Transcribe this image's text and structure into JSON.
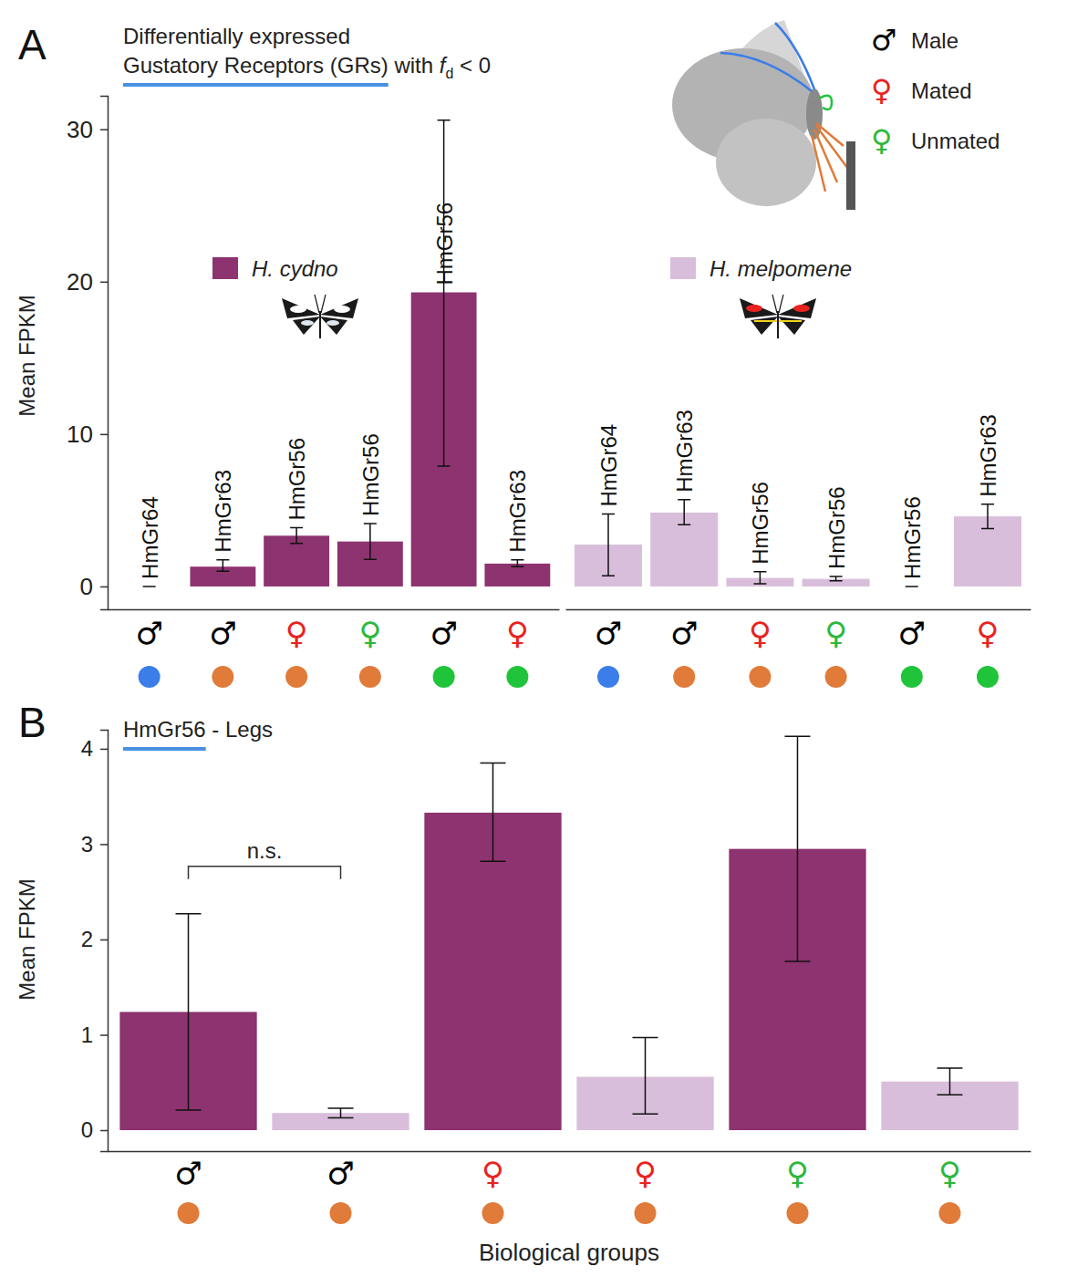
{
  "chart_data": [
    {
      "panel": "A",
      "type": "bar",
      "title": "Differentially expressed",
      "subtitle": [
        "Gustatory Receptors (GRs)",
        " with ",
        "f",
        "d",
        " < 0"
      ],
      "y_label": "Mean FPKM",
      "ylim": [
        -1.5,
        32.2
      ],
      "yticks": [
        0,
        10,
        20,
        30
      ],
      "legend": "top-right",
      "legend_items": [
        {
          "symbol": "♂",
          "label": "Male",
          "color": "#000000"
        },
        {
          "symbol": "♀",
          "label": "Mated",
          "color": "#e8231f"
        },
        {
          "symbol": "♀",
          "label": "Unmated",
          "color": "#2db83d"
        }
      ],
      "categories": [
        {
          "label": "♂",
          "color": "#000000",
          "dot_color": "#3b7de9"
        },
        {
          "label": "♂",
          "color": "#000000",
          "dot_color": "#e07b39"
        },
        {
          "label": "♀",
          "color": "#e8231f",
          "dot_color": "#e07b39"
        },
        {
          "label": "♀",
          "color": "#2db83d",
          "dot_color": "#e07b39"
        },
        {
          "label": "♂",
          "color": "#000000",
          "dot_color": "#1fc43a"
        },
        {
          "label": "♀",
          "color": "#e8231f",
          "dot_color": "#1fc43a"
        }
      ],
      "series": [
        {
          "name": "H. cydno",
          "color": "#8d336f",
          "bar_labels": [
            "HmGr64",
            "HmGr63",
            "HmGr56",
            "HmGr56",
            "HmGr56",
            "HmGr63"
          ],
          "values": [
            0,
            1.3,
            3.33,
            2.95,
            19.3,
            1.5
          ],
          "error_low": [
            0,
            1.0,
            2.82,
            1.77,
            7.9,
            1.3
          ],
          "error_high": [
            0,
            1.75,
            3.85,
            4.13,
            30.6,
            1.75
          ]
        },
        {
          "name": "H. melpomene",
          "color": "#d9bedb",
          "bar_labels": [
            "HmGr64",
            "HmGr63",
            "HmGr56",
            "HmGr56",
            "HmGr56",
            "HmGr63"
          ],
          "values": [
            2.75,
            4.85,
            0.56,
            0.5,
            0,
            4.6
          ],
          "error_low": [
            0.7,
            4.05,
            0.18,
            0.37,
            0,
            3.8
          ],
          "error_high": [
            4.75,
            5.7,
            0.97,
            0.65,
            0,
            5.4
          ]
        }
      ]
    },
    {
      "panel": "B",
      "type": "bar",
      "title": [
        "HmGr56",
        " - Legs"
      ],
      "y_label": "Mean FPKM",
      "x_label": "Biological groups",
      "ylim": [
        -0.22,
        4.2
      ],
      "yticks": [
        0,
        1,
        2,
        3,
        4
      ],
      "categories": [
        {
          "label": "♂",
          "color": "#000000",
          "dot_color": "#e07b39"
        },
        {
          "label": "♂",
          "color": "#000000",
          "dot_color": "#e07b39"
        },
        {
          "label": "♀",
          "color": "#e8231f",
          "dot_color": "#e07b39"
        },
        {
          "label": "♀",
          "color": "#e8231f",
          "dot_color": "#e07b39"
        },
        {
          "label": "♀",
          "color": "#2db83d",
          "dot_color": "#e07b39"
        },
        {
          "label": "♀",
          "color": "#2db83d",
          "dot_color": "#e07b39"
        }
      ],
      "values": [
        1.24,
        0.18,
        3.33,
        0.56,
        2.95,
        0.51
      ],
      "error_low": [
        0.21,
        0.13,
        2.82,
        0.17,
        1.77,
        0.37
      ],
      "error_high": [
        2.27,
        0.23,
        3.85,
        0.97,
        4.13,
        0.65
      ],
      "colors": [
        "#8d336f",
        "#d9bedb",
        "#8d336f",
        "#d9bedb",
        "#8d336f",
        "#d9bedb"
      ],
      "annotations": [
        {
          "text": "n.s.",
          "categories": [
            0,
            1
          ]
        }
      ]
    }
  ]
}
